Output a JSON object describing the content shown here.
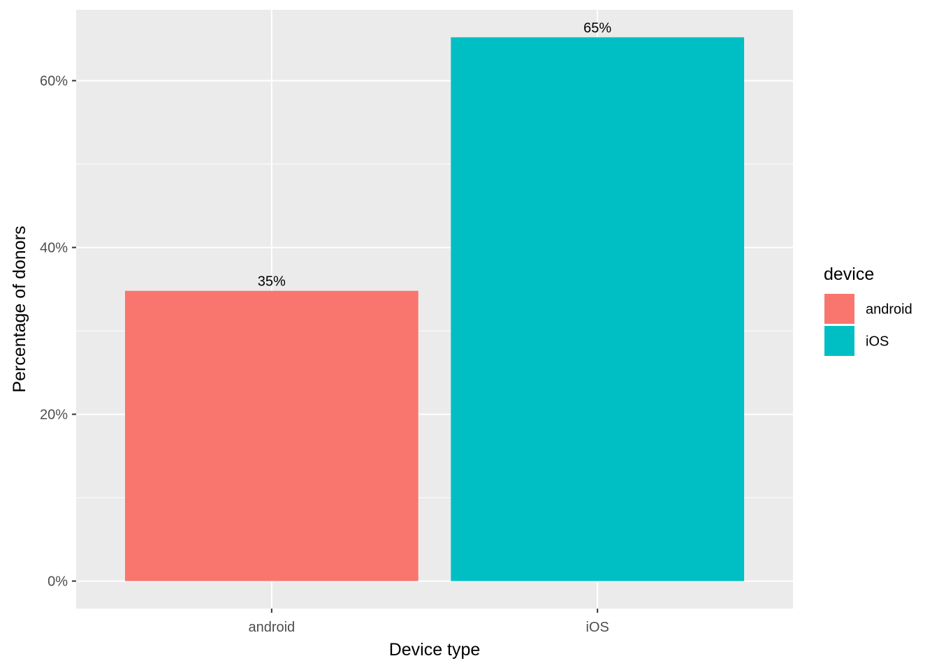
{
  "chart_data": {
    "type": "bar",
    "categories": [
      "android",
      "iOS"
    ],
    "values": [
      34.8,
      65.2
    ],
    "data_labels": [
      "35%",
      "65%"
    ],
    "colors": [
      "#F8766D",
      "#00BFC4"
    ],
    "xlabel": "Device type",
    "ylabel": "Percentage of donors",
    "ylim": [
      -3.3,
      68.5
    ],
    "y_ticks": [
      0,
      20,
      40,
      60
    ],
    "y_tick_labels": [
      "0%",
      "20%",
      "40%",
      "60%"
    ],
    "grid": true,
    "panel_background": "#EBEBEB",
    "legend": {
      "title": "device",
      "position": "right",
      "entries": [
        "android",
        "iOS"
      ]
    }
  }
}
